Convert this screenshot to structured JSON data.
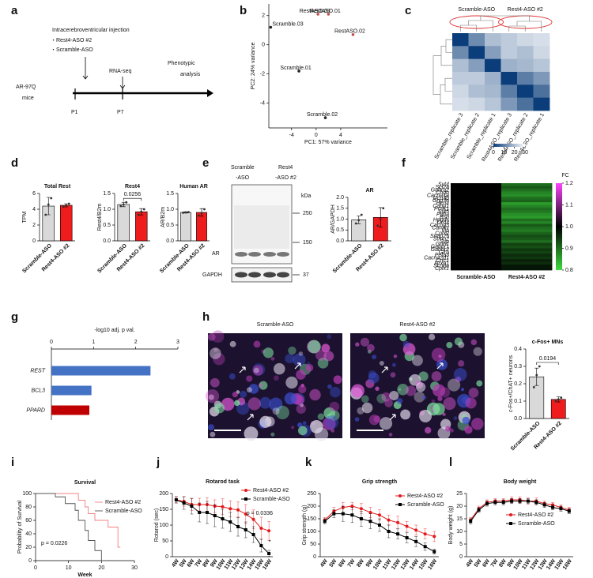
{
  "figure": {
    "panel_letters": [
      "a",
      "b",
      "c",
      "d",
      "e",
      "f",
      "g",
      "h",
      "i",
      "j",
      "k",
      "l"
    ],
    "timeline": {
      "injection": "Intracerebroventricular injection",
      "groups": [
        "・Rest4-ASO #2",
        "・Scramble-ASO"
      ],
      "rna_seq": "RNA-seq",
      "phenotypic": [
        "Phenotypic",
        "analysis"
      ],
      "mice": [
        "AR-97Q",
        "mice"
      ],
      "points": [
        "P1",
        "P7"
      ]
    },
    "blot": {
      "lanes": [
        [
          "Scramble",
          "-ASO"
        ],
        [
          "Rest4",
          "-ASO #2"
        ]
      ],
      "unit": "kDa",
      "markers": [
        250,
        150,
        37
      ],
      "proteins": [
        "AR",
        "GAPDH"
      ]
    },
    "images": {
      "titles": [
        "Scramble-ASO",
        "Rest4-ASO #2"
      ]
    }
  },
  "chart_data": [
    {
      "type": "scatter",
      "xlabel": "PC1: 57% variance",
      "ylabel": "PC2: 24% variance",
      "point_labels": [
        "Scramble.03",
        "RestASO.03",
        "RestASO.01",
        "RestASO.02",
        "Scramble.01",
        "Scramble.02"
      ],
      "x": [
        -7.4,
        0.3,
        2.0,
        6.0,
        -2.8,
        1.5
      ],
      "values": [
        1.2,
        2.1,
        2.1,
        0.7,
        -1.8,
        -5.0
      ],
      "colors": [
        "#222222",
        "#c0504d",
        "#c0504d",
        "#c0504d",
        "#222222",
        "#222222"
      ],
      "xlim": [
        -7.7,
        11.6
      ],
      "xticks": [
        -4,
        0,
        4
      ],
      "ylim": [
        -5.7,
        2.8
      ],
      "yticks": [
        -4,
        -2,
        0,
        2
      ]
    },
    {
      "type": "heatmap",
      "groups": [
        "Scramble-ASO",
        "Rest4-ASO #2"
      ],
      "columns": [
        "Scramble_replicate 3",
        "Scramble_replicate 2",
        "Scramble_replicate 1",
        "Rest4ASO_replicate 3",
        "Rest4ASO_replicate 2",
        "Rest4ASO_replicate 1"
      ],
      "values": [
        [
          0,
          12,
          20,
          22,
          24,
          25
        ],
        [
          12,
          0,
          15,
          22,
          20,
          24
        ],
        [
          20,
          15,
          0,
          18,
          19,
          21
        ],
        [
          22,
          22,
          18,
          0,
          10,
          14
        ],
        [
          24,
          20,
          19,
          10,
          0,
          8
        ],
        [
          25,
          24,
          21,
          14,
          8,
          0
        ]
      ],
      "colors": [
        "#0b3d7a",
        "#ffffff"
      ],
      "zlim": [
        0,
        30
      ],
      "zticks": [
        0,
        10,
        20,
        30
      ]
    },
    {
      "type": "bar",
      "title": "Total Rest",
      "ylabel": "TPM",
      "categories": [
        "Scramble-ASO",
        "Rest4-ASO #2"
      ],
      "values": [
        4.4,
        4.5
      ],
      "errors": [
        1.1,
        0.2
      ],
      "points": [
        [
          3.3,
          4.6,
          5.4
        ],
        [
          4.3,
          4.5,
          4.7
        ]
      ],
      "colors": [
        "#d9d9d9",
        "#ee1c1c"
      ],
      "ylim": [
        0,
        6
      ],
      "yticks": [
        0,
        2,
        4,
        6
      ]
    },
    {
      "type": "bar",
      "title": "Rest4",
      "ylabel": "Rest4/B2m",
      "annotation": "0.0256",
      "categories": [
        "Scramble-ASO",
        "Rest4-ASO #2"
      ],
      "values": [
        1.15,
        0.92
      ],
      "errors": [
        0.07,
        0.1
      ],
      "points": [
        [
          1.1,
          1.15,
          1.22
        ],
        [
          0.82,
          0.92,
          1.0
        ]
      ],
      "colors": [
        "#d9d9d9",
        "#ee1c1c"
      ],
      "ylim": [
        0,
        1.5
      ],
      "yticks": [
        {
          "value": 0,
          "label": "0.0"
        },
        {
          "value": 0.5,
          "label": "0.5"
        },
        {
          "value": 1,
          "label": "1.0"
        },
        {
          "value": 1.5,
          "label": "1.5"
        }
      ]
    },
    {
      "type": "bar",
      "title": "Human AR",
      "ylabel": "AR/B2m",
      "categories": [
        "Scramble-ASO",
        "Rest4-ASO #2"
      ],
      "values": [
        0.9,
        0.9
      ],
      "errors": [
        0.02,
        0.12
      ],
      "points": [
        [
          0.89,
          0.9,
          0.91
        ],
        [
          0.8,
          0.88,
          1.0
        ]
      ],
      "colors": [
        "#d9d9d9",
        "#ee1c1c"
      ],
      "ylim": [
        0,
        1.5
      ],
      "yticks": [
        {
          "value": 0,
          "label": "0.0"
        },
        {
          "value": 0.5,
          "label": "0.5"
        },
        {
          "value": 1,
          "label": "1.0"
        },
        {
          "value": 1.5,
          "label": "1.5"
        }
      ]
    },
    {
      "type": "bar",
      "title": "AR",
      "ylabel": "AR/GAPDH",
      "categories": [
        "Scramble-ASO",
        "Rest4-ASO #2"
      ],
      "values": [
        0.97,
        1.08
      ],
      "errors": [
        0.18,
        0.45
      ],
      "points": [
        [
          0.8,
          0.95,
          1.2
        ],
        [
          0.7,
          1.0,
          1.5
        ]
      ],
      "colors": [
        "#d9d9d9",
        "#ee1c1c"
      ],
      "ylim": [
        0,
        2
      ],
      "yticks": [
        {
          "value": 0,
          "label": "0.0"
        },
        {
          "value": 0.5,
          "label": "0.5"
        },
        {
          "value": 1,
          "label": "1.0"
        },
        {
          "value": 1.5,
          "label": "1.5"
        },
        {
          "value": 2,
          "label": "2.0"
        }
      ]
    },
    {
      "type": "heatmap",
      "colorbar_title": "FC",
      "columns": [
        "Scramble-ASO",
        "Rest4-ASO #2"
      ],
      "rows": [
        "Syt4",
        "Scl2a",
        "Gabra2",
        "Chgb",
        "Cacna1a",
        "Ucn3b",
        "Gng3e",
        "Hcn4",
        "Cabp1",
        "Pcsk1",
        "Syt5",
        "Ppfia",
        "Bsn",
        "Hpgds",
        "Drd2",
        "Cacng3",
        "Camkv",
        "Vip",
        "Cplx2",
        "Snap25",
        "Stmn2",
        "Syp",
        "Grin1",
        "Gabbr1",
        "Gabbr2",
        "Glrb",
        "Pefa3",
        "Cacna2d1",
        "Crtc1",
        "Nrxn1",
        "Scn8a",
        "Cplx1"
      ],
      "values": [
        [
          1,
          0.9
        ],
        [
          1,
          0.92
        ],
        [
          1,
          0.9
        ],
        [
          1,
          0.88
        ],
        [
          1,
          0.87
        ],
        [
          1,
          0.9
        ],
        [
          1,
          0.91
        ],
        [
          1,
          0.86
        ],
        [
          1,
          0.88
        ],
        [
          1,
          0.9
        ],
        [
          1,
          0.89
        ],
        [
          1,
          0.87
        ],
        [
          1,
          0.86
        ],
        [
          1,
          0.9
        ],
        [
          1,
          0.88
        ],
        [
          1,
          0.92
        ],
        [
          1,
          0.9
        ],
        [
          1,
          0.89
        ],
        [
          1,
          0.91
        ],
        [
          1,
          0.93
        ],
        [
          1,
          0.92
        ],
        [
          1,
          0.9
        ],
        [
          1,
          0.94
        ],
        [
          1,
          0.93
        ],
        [
          1,
          0.95
        ],
        [
          1,
          0.94
        ],
        [
          1,
          0.96
        ],
        [
          1,
          0.95
        ],
        [
          1,
          0.97
        ],
        [
          1,
          0.96
        ],
        [
          1,
          0.98
        ],
        [
          1,
          0.98
        ]
      ],
      "colors": [
        "#3ddc3d",
        "#000000",
        "#ff44ff"
      ],
      "zlim": [
        0.8,
        1.2
      ],
      "zticks": [
        0.8,
        0.9,
        {
          "value": 1,
          "label": "1.0"
        },
        1.1,
        1.2
      ]
    },
    {
      "type": "hbar",
      "xlabel": "-log10 adj. p val.",
      "categories": [
        "REST",
        "BCL3",
        "PPARD"
      ],
      "values": [
        2.35,
        0.95,
        0.9
      ],
      "colors": [
        "#4472c4",
        "#4472c4",
        "#c00000"
      ],
      "xlim": [
        0,
        3
      ],
      "xticks": [
        0,
        1,
        2,
        3
      ]
    },
    {
      "type": "bar",
      "title": "c-Fos+ MNs",
      "ylabel": "c-Fos+/ChAT+ neurons",
      "annotation": "0.0194",
      "categories": [
        "Scramble-ASO",
        "Rest4-ASO #2"
      ],
      "values": [
        0.24,
        0.11
      ],
      "errors": [
        0.05,
        0.015
      ],
      "points": [
        [
          0.18,
          0.25,
          0.3
        ],
        [
          0.1,
          0.11,
          0.12
        ]
      ],
      "colors": [
        "#d9d9d9",
        "#ee1c1c"
      ],
      "ylim": [
        0,
        0.4
      ],
      "yticks": [
        {
          "value": 0,
          "label": "0.0"
        },
        0.1,
        0.2,
        0.3,
        0.4
      ]
    },
    {
      "type": "step",
      "title": "Survival",
      "xlabel": "Week",
      "ylabel": "Probability of Survival",
      "annotation": "p = 0.0226",
      "series": [
        {
          "name": "Rest4-ASO #2",
          "color": "#f08080",
          "x": [
            0,
            13,
            15,
            16,
            18,
            22,
            25
          ],
          "values": [
            100,
            90,
            80,
            70,
            60,
            50,
            20
          ]
        },
        {
          "name": "Scramble-ASO",
          "color": "#555555",
          "x": [
            0,
            6,
            9,
            12,
            13,
            15,
            16,
            18,
            20
          ],
          "values": [
            100,
            95,
            85,
            75,
            60,
            45,
            30,
            15,
            0
          ]
        }
      ],
      "xlim": [
        0,
        30
      ],
      "xticks": [
        0,
        10,
        20,
        30
      ],
      "ylim": [
        0,
        100
      ],
      "yticks": [
        0,
        20,
        40,
        60,
        80,
        100
      ]
    },
    {
      "type": "line",
      "title": "Rotarod task",
      "ylabel": "Rotarod (sec)",
      "annotation": "p = 0.0336",
      "significance": "*",
      "categories": [
        "4W",
        "5W",
        "6W",
        "7W",
        "8W",
        "9W",
        "10W",
        "11W",
        "12W",
        "13W",
        "14W",
        "15W",
        "16W"
      ],
      "series": [
        {
          "name": "Rest4-ASO #2",
          "color": "#e41a1c",
          "marker": "circle",
          "values": [
            180,
            175,
            165,
            165,
            165,
            160,
            158,
            152,
            148,
            135,
            118,
            90,
            82
          ],
          "errors": [
            10,
            15,
            18,
            20,
            22,
            20,
            25,
            25,
            25,
            30,
            30,
            35,
            30
          ]
        },
        {
          "name": "Scramble-ASO",
          "color": "#000000",
          "marker": "square",
          "values": [
            180,
            170,
            160,
            140,
            140,
            130,
            120,
            110,
            95,
            85,
            70,
            35,
            10
          ],
          "errors": [
            10,
            20,
            25,
            30,
            35,
            35,
            30,
            30,
            30,
            25,
            25,
            20,
            10
          ]
        }
      ],
      "ylim": [
        0,
        200
      ],
      "yticks": [
        0,
        50,
        100,
        150,
        200
      ]
    },
    {
      "type": "line",
      "title": "Grip strength",
      "ylabel": "Grip strength (g)",
      "categories": [
        "4W",
        "5W",
        "6W",
        "7W",
        "8W",
        "9W",
        "10W",
        "11W",
        "12W",
        "13W",
        "14W",
        "15W",
        "16W"
      ],
      "series": [
        {
          "name": "Rest4-ASO #2",
          "color": "#e41a1c",
          "marker": "circle",
          "values": [
            145,
            180,
            195,
            200,
            190,
            175,
            165,
            145,
            135,
            120,
            105,
            90,
            80
          ],
          "errors": [
            10,
            15,
            20,
            15,
            20,
            20,
            20,
            20,
            25,
            20,
            20,
            20,
            20
          ]
        },
        {
          "name": "Scramble-ASO",
          "color": "#000000",
          "marker": "square",
          "values": [
            140,
            170,
            170,
            165,
            150,
            140,
            125,
            100,
            90,
            75,
            60,
            40,
            20
          ],
          "errors": [
            10,
            15,
            30,
            30,
            30,
            30,
            25,
            25,
            20,
            20,
            20,
            15,
            10
          ]
        }
      ],
      "ylim": [
        0,
        250
      ],
      "yticks": [
        0,
        50,
        100,
        150,
        200,
        250
      ]
    },
    {
      "type": "line",
      "title": "Body weight",
      "ylabel": "Body weight (g)",
      "categories": [
        "4W",
        "5W",
        "6W",
        "7W",
        "8W",
        "9W",
        "10W",
        "11W",
        "12W",
        "13W",
        "14W",
        "15W",
        "16W"
      ],
      "series": [
        {
          "name": "Rest4-ASO #2",
          "color": "#e41a1c",
          "marker": "circle",
          "values": [
            14.5,
            19,
            21.5,
            22,
            22,
            22.5,
            22.5,
            22,
            22,
            21,
            20.5,
            19.5,
            18.5
          ],
          "errors": [
            1,
            1,
            1,
            1,
            1,
            1.2,
            1.2,
            1.2,
            1.2,
            1,
            1,
            1,
            1
          ]
        },
        {
          "name": "Scramble-ASO",
          "color": "#000000",
          "marker": "square",
          "values": [
            14,
            18.5,
            21,
            21.5,
            21.5,
            22,
            22,
            22,
            21.5,
            20.5,
            19.5,
            19,
            18
          ],
          "errors": [
            1,
            1,
            1,
            1,
            1,
            1,
            1,
            1,
            1,
            1,
            1,
            1,
            1
          ]
        }
      ],
      "ylim": [
        0,
        25
      ],
      "yticks": [
        0,
        5,
        10,
        15,
        20,
        25
      ]
    }
  ]
}
